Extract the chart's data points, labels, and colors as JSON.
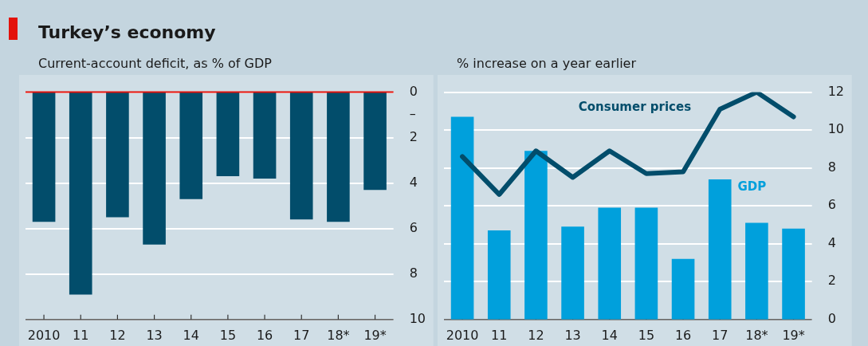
{
  "chart_data": [
    {
      "type": "bar",
      "title": "Turkey’s economy",
      "subtitle": "Current-account deficit, as % of GDP",
      "categories": [
        "2010",
        "11",
        "12",
        "13",
        "14",
        "15",
        "16",
        "17",
        "18*",
        "19*"
      ],
      "series": [
        {
          "color": "#024d6b",
          "values": [
            5.7,
            8.9,
            5.5,
            6.7,
            4.7,
            3.7,
            3.8,
            5.6,
            5.7,
            4.3
          ]
        }
      ],
      "ylim": [
        10,
        0
      ],
      "yticks": [
        0,
        {
          "value": 1,
          "label": "–"
        },
        2,
        4,
        6,
        8,
        10
      ],
      "grid": "y",
      "legend": false,
      "ref_lines": [
        {
          "axis": "y",
          "value": 0,
          "color": "#e3120b"
        }
      ]
    },
    {
      "type": "bar",
      "subtitle": "% increase on a year earlier",
      "categories": [
        "2010",
        "11",
        "12",
        "13",
        "14",
        "15",
        "16",
        "17",
        "18*",
        "19*"
      ],
      "series": [
        {
          "name": "GDP",
          "color": "#00a0dc",
          "values": [
            10.7,
            4.7,
            8.9,
            4.9,
            5.9,
            5.9,
            3.2,
            7.4,
            5.1,
            4.8
          ]
        },
        {
          "name": "Consumer prices",
          "type": "line",
          "color": "#024d6b",
          "values": [
            8.6,
            6.6,
            8.9,
            7.5,
            8.9,
            7.7,
            7.8,
            11.1,
            12.0,
            10.7
          ]
        }
      ],
      "ylim": [
        0,
        12
      ],
      "yticks": [
        0,
        2,
        4,
        6,
        8,
        10,
        12
      ],
      "grid": "y",
      "legend": false,
      "marker": "none"
    }
  ]
}
